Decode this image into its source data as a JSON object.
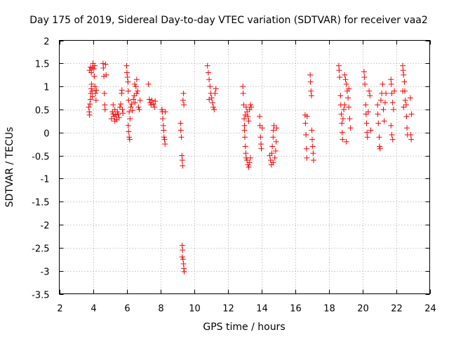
{
  "chart_data": {
    "type": "scatter",
    "title": "Day 175 of 2019, Sidereal Day-to-day VTEC variation (SDTVAR) for receiver vaa2",
    "xlabel": "GPS time / hours",
    "ylabel": "SDTVAR / TECUs",
    "xlim": [
      2,
      24
    ],
    "ylim": [
      -3.5,
      2
    ],
    "xticks": [
      2,
      4,
      6,
      8,
      10,
      12,
      14,
      16,
      18,
      20,
      22,
      24
    ],
    "xtick_labels": [
      "2",
      "4",
      "6",
      "8",
      "10",
      "12",
      "14",
      "16",
      "18",
      "20",
      "22",
      "24"
    ],
    "yticks": [
      2,
      1.5,
      1,
      0.5,
      0,
      -0.5,
      -1,
      -1.5,
      -2,
      -2.5,
      -3,
      -3.5
    ],
    "ytick_labels": [
      "2",
      "1.5",
      "1",
      "0.5",
      "0",
      "-0.5",
      "-1",
      "-1.5",
      "-2",
      "-2.5",
      "-3",
      "-3.5"
    ],
    "grid": true,
    "marker": "plus",
    "color": "#ff0000",
    "series": [
      {
        "name": "SDTVAR",
        "points": [
          [
            3.75,
            0.55
          ],
          [
            3.78,
            0.45
          ],
          [
            3.8,
            0.38
          ],
          [
            3.82,
            0.62
          ],
          [
            3.85,
            0.72
          ],
          [
            3.87,
            0.85
          ],
          [
            3.9,
            0.95
          ],
          [
            3.92,
            1.05
          ],
          [
            3.95,
            0.9
          ],
          [
            3.97,
            0.78
          ],
          [
            3.8,
            1.35
          ],
          [
            3.85,
            1.42
          ],
          [
            3.9,
            1.3
          ],
          [
            3.95,
            1.4
          ],
          [
            4.0,
            1.5
          ],
          [
            4.05,
            1.38
          ],
          [
            4.08,
            1.22
          ],
          [
            4.1,
            1.45
          ],
          [
            4.12,
            1.0
          ],
          [
            4.15,
            0.85
          ],
          [
            4.18,
            0.7
          ],
          [
            4.2,
            0.92
          ],
          [
            4.6,
            1.5
          ],
          [
            4.62,
            1.4
          ],
          [
            4.65,
            1.22
          ],
          [
            4.68,
            0.85
          ],
          [
            4.7,
            0.6
          ],
          [
            4.72,
            0.5
          ],
          [
            4.75,
            1.48
          ],
          [
            4.78,
            1.25
          ],
          [
            5.1,
            0.3
          ],
          [
            5.15,
            0.45
          ],
          [
            5.2,
            0.4
          ],
          [
            5.25,
            0.35
          ],
          [
            5.3,
            0.5
          ],
          [
            5.35,
            0.38
          ],
          [
            5.4,
            0.28
          ],
          [
            5.45,
            0.45
          ],
          [
            5.5,
            0.4
          ],
          [
            5.55,
            0.32
          ],
          [
            5.6,
            0.55
          ],
          [
            5.65,
            0.62
          ],
          [
            5.7,
            0.85
          ],
          [
            5.72,
            0.92
          ],
          [
            5.75,
            0.5
          ],
          [
            5.78,
            0.42
          ],
          [
            5.2,
            0.6
          ],
          [
            5.3,
            0.25
          ],
          [
            6.0,
            1.45
          ],
          [
            6.02,
            1.3
          ],
          [
            6.05,
            1.2
          ],
          [
            6.08,
            1.1
          ],
          [
            6.1,
            0.9
          ],
          [
            6.12,
            0.7
          ],
          [
            6.15,
            0.45
          ],
          [
            6.1,
            0.15
          ],
          [
            6.12,
            0.02
          ],
          [
            6.15,
            -0.1
          ],
          [
            6.18,
            -0.15
          ],
          [
            6.2,
            0.3
          ],
          [
            6.25,
            0.55
          ],
          [
            6.3,
            0.62
          ],
          [
            6.35,
            0.48
          ],
          [
            6.4,
            0.72
          ],
          [
            6.45,
            0.8
          ],
          [
            6.5,
            0.65
          ],
          [
            6.55,
            1.0
          ],
          [
            6.6,
            1.15
          ],
          [
            6.65,
            0.9
          ],
          [
            6.7,
            0.55
          ],
          [
            6.75,
            0.5
          ],
          [
            6.8,
            0.7
          ],
          [
            6.6,
            0.85
          ],
          [
            6.48,
            1.05
          ],
          [
            7.3,
            1.05
          ],
          [
            7.35,
            0.72
          ],
          [
            7.4,
            0.65
          ],
          [
            7.45,
            0.6
          ],
          [
            7.5,
            0.7
          ],
          [
            7.6,
            0.62
          ],
          [
            7.65,
            0.55
          ],
          [
            7.7,
            0.68
          ],
          [
            8.1,
            0.5
          ],
          [
            8.12,
            0.45
          ],
          [
            8.15,
            0.3
          ],
          [
            8.18,
            0.15
          ],
          [
            8.2,
            0.05
          ],
          [
            8.22,
            -0.1
          ],
          [
            8.25,
            -0.15
          ],
          [
            8.28,
            -0.25
          ],
          [
            8.3,
            0.45
          ],
          [
            9.2,
            0.2
          ],
          [
            9.22,
            0.05
          ],
          [
            9.25,
            -0.1
          ],
          [
            9.28,
            -0.5
          ],
          [
            9.3,
            -0.6
          ],
          [
            9.32,
            -0.72
          ],
          [
            9.35,
            0.7
          ],
          [
            9.38,
            0.85
          ],
          [
            9.4,
            0.6
          ],
          [
            9.3,
            -2.45
          ],
          [
            9.32,
            -2.55
          ],
          [
            9.35,
            -2.75
          ],
          [
            9.38,
            -2.85
          ],
          [
            9.4,
            -2.95
          ],
          [
            9.42,
            -3.02
          ],
          [
            9.3,
            -2.7
          ],
          [
            10.8,
            1.45
          ],
          [
            10.85,
            1.3
          ],
          [
            10.9,
            1.15
          ],
          [
            10.95,
            1.0
          ],
          [
            11.0,
            0.85
          ],
          [
            11.05,
            0.75
          ],
          [
            11.1,
            0.65
          ],
          [
            11.15,
            0.55
          ],
          [
            11.2,
            0.5
          ],
          [
            11.25,
            0.85
          ],
          [
            11.3,
            0.95
          ],
          [
            10.9,
            0.72
          ],
          [
            12.9,
            1.0
          ],
          [
            12.92,
            0.85
          ],
          [
            12.95,
            0.6
          ],
          [
            12.98,
            0.3
          ],
          [
            13.0,
            0.15
          ],
          [
            13.02,
            -0.1
          ],
          [
            13.05,
            -0.3
          ],
          [
            13.08,
            -0.45
          ],
          [
            13.1,
            -0.55
          ],
          [
            13.15,
            -0.6
          ],
          [
            13.2,
            -0.7
          ],
          [
            13.25,
            -0.75
          ],
          [
            13.3,
            -0.65
          ],
          [
            13.35,
            -0.55
          ],
          [
            13.1,
            0.55
          ],
          [
            13.15,
            0.45
          ],
          [
            13.2,
            0.35
          ],
          [
            13.25,
            0.25
          ],
          [
            13.3,
            0.5
          ],
          [
            13.35,
            0.6
          ],
          [
            13.4,
            0.55
          ],
          [
            13.0,
            0.05
          ],
          [
            13.05,
            0.38
          ],
          [
            13.9,
            0.35
          ],
          [
            13.92,
            0.15
          ],
          [
            13.95,
            -0.1
          ],
          [
            13.98,
            -0.25
          ],
          [
            14.0,
            -0.35
          ],
          [
            14.05,
            0.1
          ],
          [
            14.5,
            -0.5
          ],
          [
            14.55,
            -0.6
          ],
          [
            14.6,
            -0.7
          ],
          [
            14.62,
            -0.45
          ],
          [
            14.65,
            -0.3
          ],
          [
            14.7,
            -0.1
          ],
          [
            14.72,
            0.05
          ],
          [
            14.75,
            0.15
          ],
          [
            14.8,
            -0.55
          ],
          [
            14.85,
            -0.4
          ],
          [
            14.88,
            -0.2
          ],
          [
            14.9,
            0.1
          ],
          [
            14.7,
            -0.65
          ],
          [
            16.6,
            0.38
          ],
          [
            16.62,
            0.2
          ],
          [
            16.65,
            -0.05
          ],
          [
            16.68,
            -0.35
          ],
          [
            16.7,
            -0.55
          ],
          [
            16.72,
            0.35
          ],
          [
            16.9,
            1.25
          ],
          [
            16.92,
            1.1
          ],
          [
            16.95,
            0.9
          ],
          [
            16.98,
            0.8
          ],
          [
            17.0,
            0.05
          ],
          [
            17.02,
            -0.15
          ],
          [
            17.05,
            -0.3
          ],
          [
            17.08,
            -0.45
          ],
          [
            17.1,
            -0.6
          ],
          [
            18.6,
            1.45
          ],
          [
            18.62,
            1.35
          ],
          [
            18.65,
            1.2
          ],
          [
            18.7,
            0.8
          ],
          [
            18.72,
            0.6
          ],
          [
            18.75,
            0.4
          ],
          [
            18.78,
            0.2
          ],
          [
            18.8,
            0.0
          ],
          [
            18.82,
            -0.15
          ],
          [
            18.85,
            0.3
          ],
          [
            18.9,
            0.5
          ],
          [
            18.95,
            1.25
          ],
          [
            19.0,
            1.15
          ],
          [
            19.05,
            1.05
          ],
          [
            19.1,
            0.9
          ],
          [
            19.15,
            0.75
          ],
          [
            19.2,
            0.55
          ],
          [
            19.25,
            0.3
          ],
          [
            19.3,
            0.1
          ],
          [
            19.05,
            -0.2
          ],
          [
            18.95,
            0.6
          ],
          [
            19.2,
            0.95
          ],
          [
            20.1,
            1.32
          ],
          [
            20.12,
            1.2
          ],
          [
            20.15,
            1.05
          ],
          [
            20.2,
            0.6
          ],
          [
            20.22,
            0.4
          ],
          [
            20.25,
            0.2
          ],
          [
            20.28,
            0.0
          ],
          [
            20.3,
            -0.1
          ],
          [
            20.35,
            0.45
          ],
          [
            20.4,
            0.9
          ],
          [
            20.45,
            0.8
          ],
          [
            20.5,
            0.05
          ],
          [
            20.9,
            0.6
          ],
          [
            20.92,
            0.4
          ],
          [
            20.95,
            0.2
          ],
          [
            21.0,
            -0.1
          ],
          [
            21.02,
            -0.3
          ],
          [
            21.05,
            -0.35
          ],
          [
            21.1,
            0.7
          ],
          [
            21.15,
            0.85
          ],
          [
            21.2,
            1.05
          ],
          [
            21.25,
            0.5
          ],
          [
            21.3,
            0.25
          ],
          [
            21.35,
            0.65
          ],
          [
            21.4,
            0.85
          ],
          [
            21.7,
            1.15
          ],
          [
            21.72,
            1.05
          ],
          [
            21.75,
            0.85
          ],
          [
            21.8,
            0.65
          ],
          [
            21.85,
            0.5
          ],
          [
            21.7,
            0.15
          ],
          [
            21.75,
            -0.05
          ],
          [
            21.8,
            -0.15
          ],
          [
            21.9,
            0.9
          ],
          [
            22.4,
            1.45
          ],
          [
            22.42,
            1.35
          ],
          [
            22.45,
            1.25
          ],
          [
            22.5,
            1.1
          ],
          [
            22.52,
            0.9
          ],
          [
            22.55,
            0.7
          ],
          [
            22.6,
            0.6
          ],
          [
            22.62,
            0.35
          ],
          [
            22.65,
            0.1
          ],
          [
            22.68,
            -0.05
          ],
          [
            22.4,
            0.9
          ],
          [
            22.45,
            0.55
          ],
          [
            22.85,
            0.75
          ],
          [
            22.88,
            -0.05
          ],
          [
            22.9,
            -0.15
          ],
          [
            22.92,
            0.4
          ]
        ]
      }
    ]
  }
}
